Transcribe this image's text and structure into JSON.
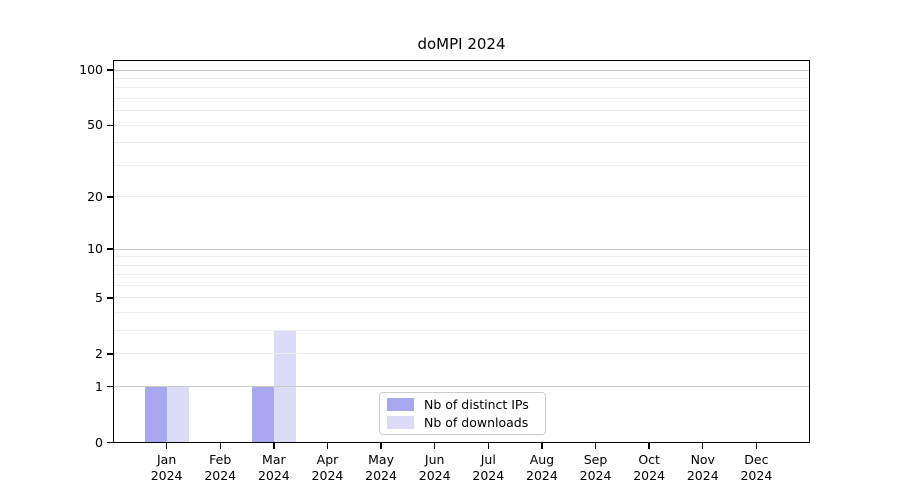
{
  "chart_data": {
    "type": "bar",
    "title": "doMPI 2024",
    "categories": [
      {
        "month": "Jan",
        "year": "2024"
      },
      {
        "month": "Feb",
        "year": "2024"
      },
      {
        "month": "Mar",
        "year": "2024"
      },
      {
        "month": "Apr",
        "year": "2024"
      },
      {
        "month": "May",
        "year": "2024"
      },
      {
        "month": "Jun",
        "year": "2024"
      },
      {
        "month": "Jul",
        "year": "2024"
      },
      {
        "month": "Aug",
        "year": "2024"
      },
      {
        "month": "Sep",
        "year": "2024"
      },
      {
        "month": "Oct",
        "year": "2024"
      },
      {
        "month": "Nov",
        "year": "2024"
      },
      {
        "month": "Dec",
        "year": "2024"
      }
    ],
    "series": [
      {
        "name": "Nb of distinct IPs",
        "color": "#a8a8f0",
        "values": [
          1,
          0,
          1,
          0,
          0,
          0,
          0,
          0,
          0,
          0,
          0,
          0
        ]
      },
      {
        "name": "Nb of downloads",
        "color": "#dcdcf8",
        "values": [
          1,
          0,
          3,
          0,
          0,
          0,
          0,
          0,
          0,
          0,
          0,
          0
        ]
      }
    ],
    "yticks": [
      {
        "value": 0,
        "label": "0"
      },
      {
        "value": 1,
        "label": "1"
      },
      {
        "value": 2,
        "label": "2"
      },
      {
        "value": 5,
        "label": "5"
      },
      {
        "value": 10,
        "label": "10"
      },
      {
        "value": 20,
        "label": "20"
      },
      {
        "value": 50,
        "label": "50"
      },
      {
        "value": 100,
        "label": "100"
      }
    ],
    "major_gridlines": [
      1,
      10,
      100
    ],
    "minor_gridlines": [
      2,
      3,
      4,
      5,
      6,
      7,
      8,
      9,
      20,
      30,
      40,
      50,
      60,
      70,
      80,
      90
    ],
    "scale": "log1p",
    "ylim": [
      0,
      113.6
    ],
    "xlabel": "",
    "ylabel": "",
    "grid": true,
    "legend_position": "lower center inside",
    "colors": {
      "major_grid": "#c9c9c9",
      "minor_grid": "#ededed",
      "axis": "#000000",
      "background": "#ffffff"
    }
  }
}
